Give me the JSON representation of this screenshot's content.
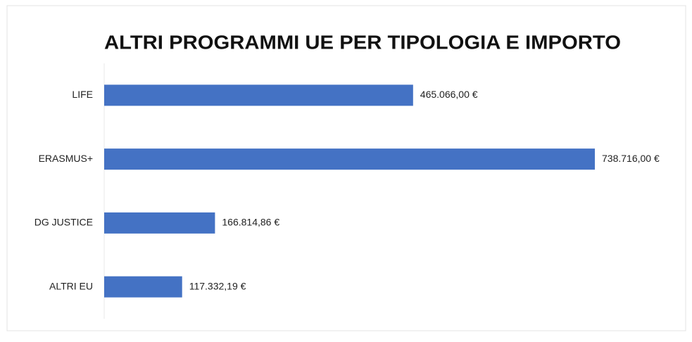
{
  "chart_data": {
    "type": "hbar",
    "title": "ALTRI PROGRAMMI UE PER TIPOLOGIA E IMPORTO",
    "categories": [
      "LIFE",
      "ERASMUS+",
      "DG JUSTICE",
      "ALTRI EU"
    ],
    "values": [
      465066,
      738716,
      166814.86,
      117332.19
    ],
    "value_labels": [
      "465.066,00 €",
      "738.716,00 €",
      "166.814,86 €",
      "117.332,19 €"
    ],
    "color": "#4472c4"
  }
}
